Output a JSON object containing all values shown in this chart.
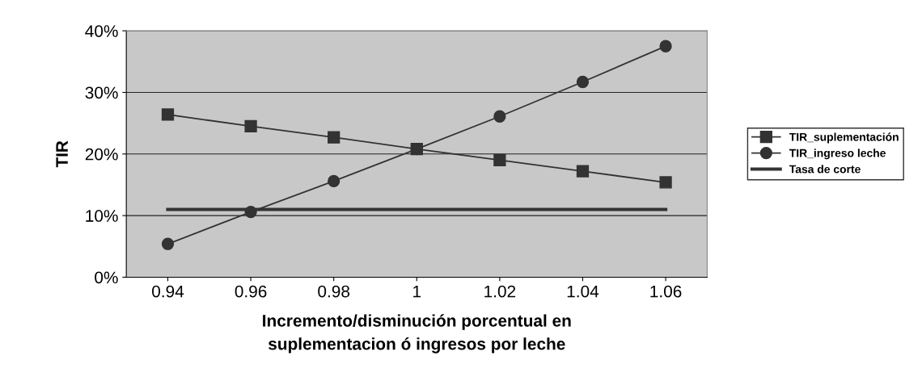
{
  "chart_data": {
    "type": "line",
    "xlabel": "Incremento/disminución porcentual en\nsuplementacion ó ingresos por leche",
    "ylabel": "TIR",
    "categories": [
      "0.94",
      "0.96",
      "0.98",
      "1",
      "1.02",
      "1.04",
      "1.06"
    ],
    "series": [
      {
        "name": "TIR_suplementación",
        "color": "#333333",
        "marker": "square",
        "values": [
          26.4,
          24.5,
          22.7,
          20.8,
          19.0,
          17.2,
          15.4
        ]
      },
      {
        "name": "TIR_ingreso leche",
        "color": "#333333",
        "marker": "circle",
        "values": [
          5.4,
          10.6,
          15.6,
          20.8,
          26.1,
          31.7,
          37.5
        ]
      },
      {
        "name": "Tasa de corte",
        "color": "#333333",
        "marker": "none",
        "values": [
          11.0,
          11.0,
          11.0,
          11.0,
          11.0,
          11.0,
          11.0
        ]
      }
    ],
    "ylim": [
      0,
      40
    ],
    "yticks": [
      {
        "value": 0,
        "label": "0%"
      },
      {
        "value": 10,
        "label": "10%"
      },
      {
        "value": 20,
        "label": "20%"
      },
      {
        "value": 30,
        "label": "30%"
      },
      {
        "value": 40,
        "label": "40%"
      }
    ],
    "grid": "y",
    "legend": "right",
    "line_style": "solid"
  }
}
